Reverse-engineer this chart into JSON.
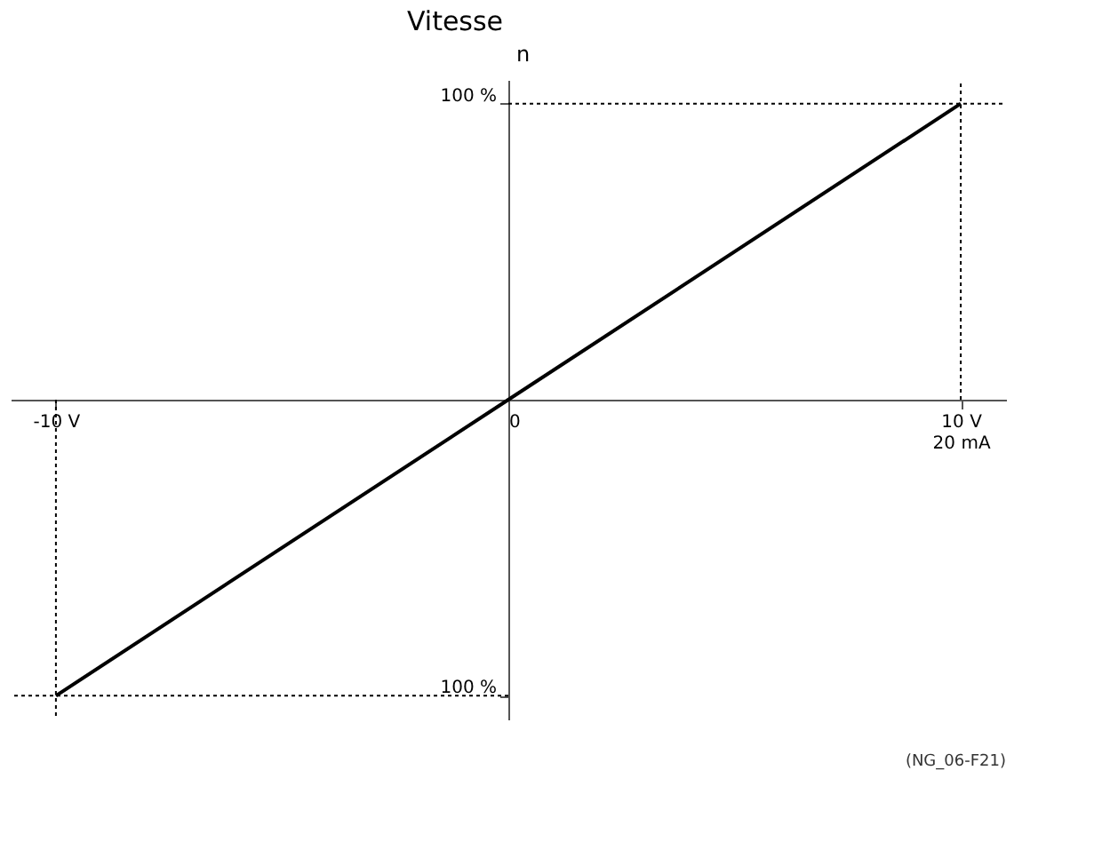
{
  "chart_data": {
    "type": "line",
    "title": "Vitesse",
    "ylabel": "n",
    "x": [
      -10,
      0,
      10
    ],
    "series": [
      {
        "color": "#000000",
        "values": [
          -100,
          0,
          100
        ]
      }
    ],
    "xlim": [
      -11,
      11
    ],
    "ylim": [
      -108,
      108
    ],
    "xticks": [
      {
        "value": -10,
        "label": "-10 V"
      },
      0,
      {
        "value": 10,
        "label": "10 V\n20 mA"
      }
    ],
    "yticks": [
      {
        "value": -100,
        "label": "100 %"
      },
      {
        "value": 100,
        "label": "100 %"
      }
    ],
    "ref_lines": [
      {
        "axis": "x",
        "value": 10,
        "line_style": "dotted",
        "color": "#000000"
      },
      {
        "axis": "x",
        "value": -10,
        "line_style": "dotted",
        "color": "#000000"
      },
      {
        "axis": "y",
        "value": 100,
        "line_style": "dotted",
        "color": "#000000"
      },
      {
        "axis": "y",
        "value": -100,
        "line_style": "dotted",
        "color": "#000000"
      }
    ],
    "annotations": [
      "(NG_06-F21)"
    ],
    "grid": false,
    "marker": "none",
    "line_style": "solid"
  }
}
